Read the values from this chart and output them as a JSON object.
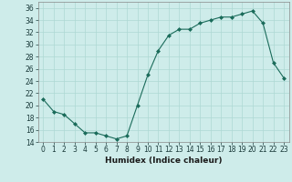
{
  "x": [
    0,
    1,
    2,
    3,
    4,
    5,
    6,
    7,
    8,
    9,
    10,
    11,
    12,
    13,
    14,
    15,
    16,
    17,
    18,
    19,
    20,
    21,
    22,
    23
  ],
  "y": [
    21,
    19,
    18.5,
    17,
    15.5,
    15.5,
    15,
    14.5,
    15,
    20,
    25,
    29,
    31.5,
    32.5,
    32.5,
    33.5,
    34,
    34.5,
    34.5,
    35,
    35.5,
    33.5,
    27,
    24.5
  ],
  "line_color": "#1a6b5a",
  "marker": "D",
  "marker_size": 2,
  "bg_color": "#ceecea",
  "grid_color": "#aed8d4",
  "xlabel": "Humidex (Indice chaleur)",
  "ylim": [
    14,
    37
  ],
  "xlim": [
    -0.5,
    23.5
  ],
  "yticks": [
    14,
    16,
    18,
    20,
    22,
    24,
    26,
    28,
    30,
    32,
    34,
    36
  ],
  "xticks": [
    0,
    1,
    2,
    3,
    4,
    5,
    6,
    7,
    8,
    9,
    10,
    11,
    12,
    13,
    14,
    15,
    16,
    17,
    18,
    19,
    20,
    21,
    22,
    23
  ],
  "tick_fontsize": 5.5,
  "xlabel_fontsize": 6.5
}
